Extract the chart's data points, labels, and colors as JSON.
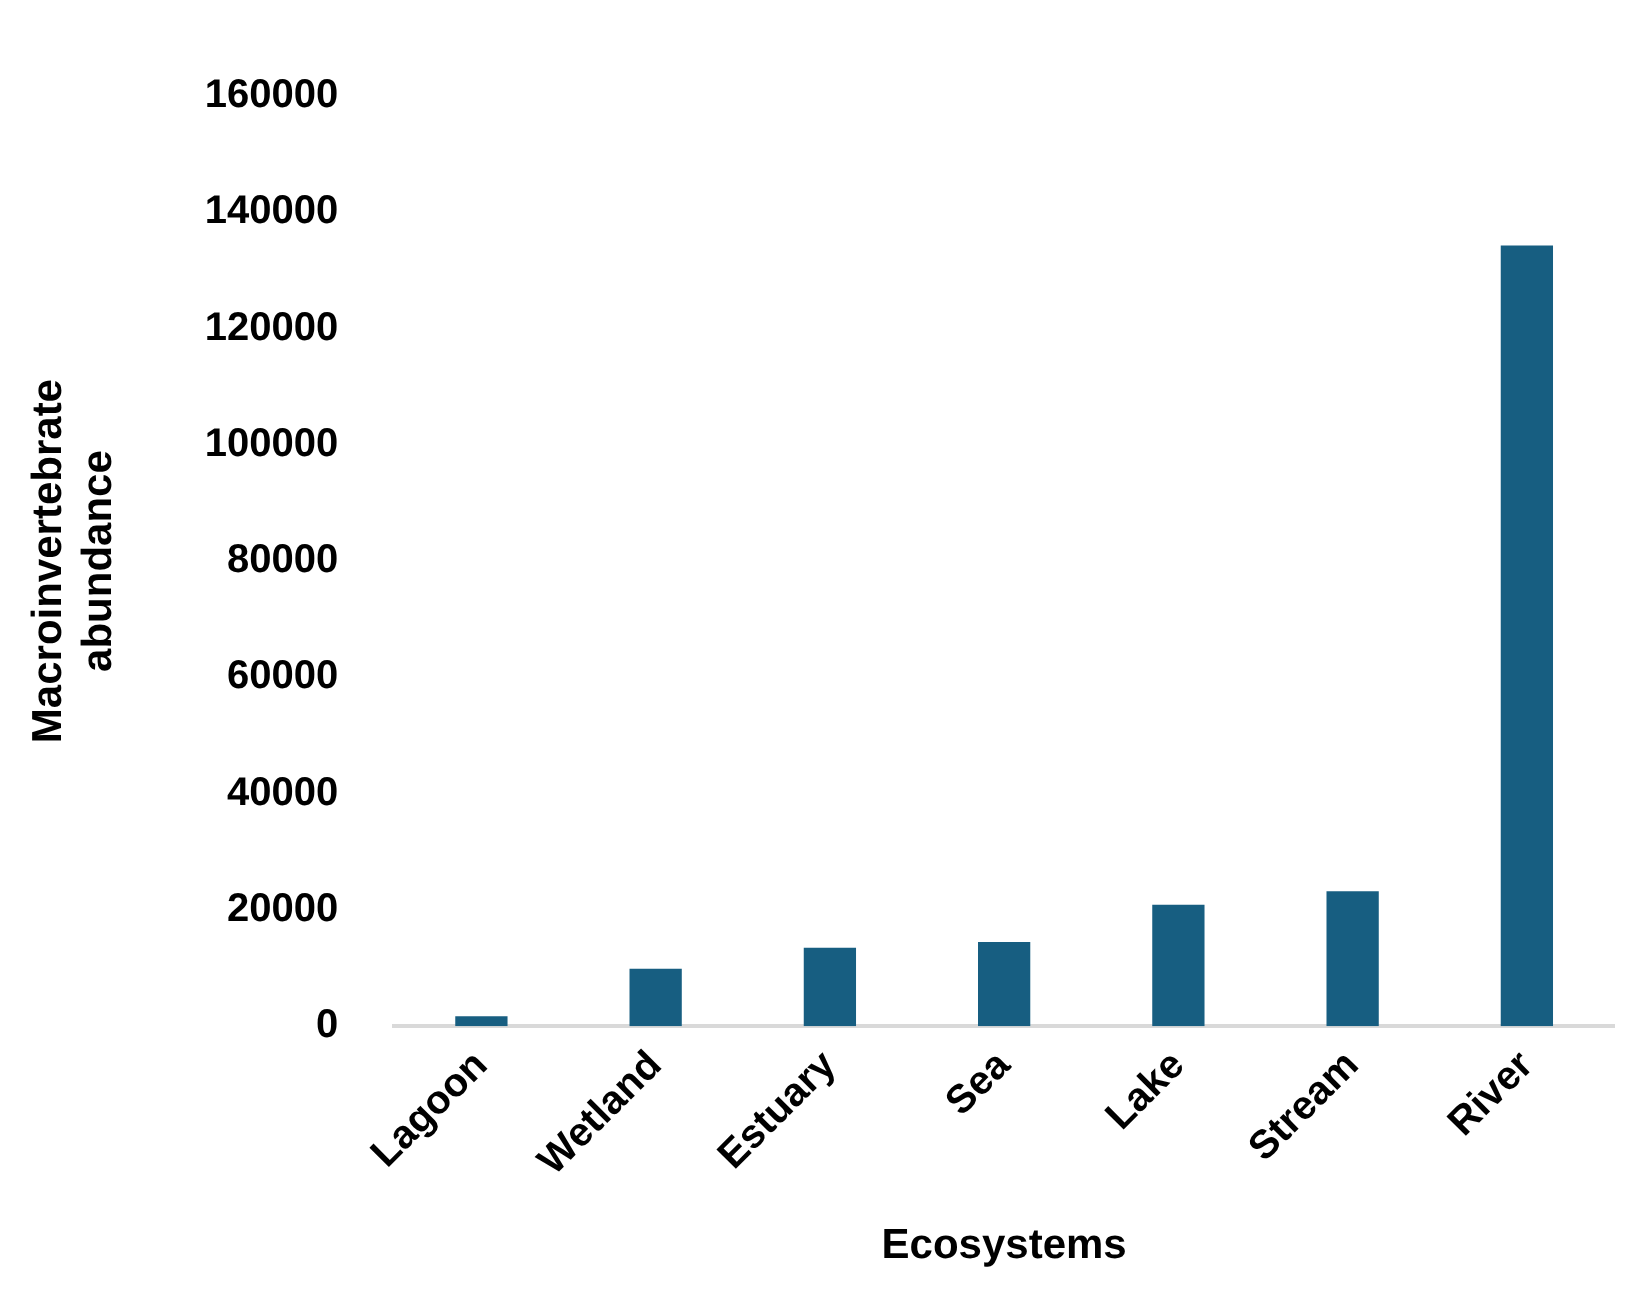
{
  "chart_data": {
    "type": "bar",
    "xlabel": "Ecosystems",
    "ylabel": "Macroinvertebrate abundance",
    "categories": [
      "Lagoon",
      "Wetland",
      "Estuary",
      "Sea",
      "Lake",
      "Stream",
      "River"
    ],
    "values": [
      1700,
      9900,
      13500,
      14500,
      20900,
      23200,
      134300
    ],
    "color": "#175e81",
    "ylim": [
      0,
      160000
    ],
    "yticks": [
      0,
      20000,
      40000,
      60000,
      80000,
      100000,
      120000,
      140000,
      160000
    ],
    "grid": false,
    "legend": false
  }
}
